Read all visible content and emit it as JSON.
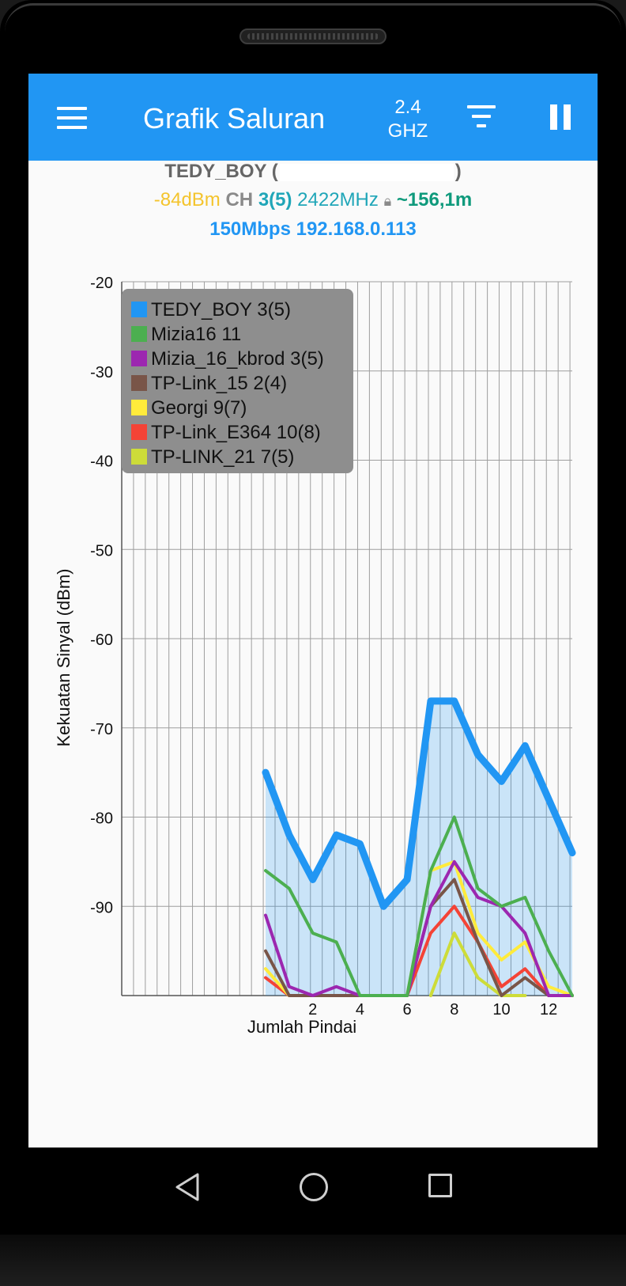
{
  "app_bar": {
    "title": "Grafik Saluran",
    "band_line1": "2.4",
    "band_line2": "GHZ",
    "menu_icon": "hamburger-menu-icon",
    "filter_icon": "filter-icon",
    "pause_icon": "pause-icon"
  },
  "connection": {
    "ssid": "TEDY_BOY",
    "ssid_open": "(",
    "ssid_close": ")",
    "signal": "-84dBm",
    "ch_label": "CH",
    "channel": "3(5)",
    "frequency": "2422MHz",
    "lock_icon": "lock-icon",
    "distance": "~156,1m",
    "speed": "150Mbps",
    "ip": "192.168.0.113"
  },
  "colors": {
    "accent": "#2196f3",
    "signal": "#f4c42c",
    "channel": "#20a6b8",
    "distance": "#0f9a7c"
  },
  "chart_data": {
    "type": "line",
    "xlabel": "Jumlah Pindai",
    "ylabel": "Kekuatan Sinyal (dBm)",
    "ylim": [
      -100,
      -20
    ],
    "y_ticks": [
      -20,
      -30,
      -40,
      -50,
      -60,
      -70,
      -80,
      -90
    ],
    "x_ticks": [
      2,
      4,
      6,
      8,
      10,
      12
    ],
    "grid": true,
    "legend_position": "top-left",
    "series": [
      {
        "name": "TEDY_BOY 3(5)",
        "color": "#2196f3",
        "fill": true,
        "x": [
          0,
          1,
          2,
          3,
          4,
          5,
          6,
          7,
          8,
          9,
          10,
          11,
          12,
          13
        ],
        "values": [
          -75,
          -82,
          -87,
          -82,
          -83,
          -90,
          -87,
          -67,
          -67,
          -73,
          -76,
          -72,
          -78,
          -84
        ]
      },
      {
        "name": "Mizia16 11",
        "color": "#4caf50",
        "x": [
          0,
          1,
          2,
          3,
          4,
          5,
          6,
          7,
          8,
          9,
          10,
          11,
          12,
          13
        ],
        "values": [
          -86,
          -88,
          -93,
          -94,
          -100,
          -100,
          -100,
          -86,
          -80,
          -88,
          -90,
          -89,
          -95,
          -100
        ]
      },
      {
        "name": "Mizia_16_kbrod 3(5)",
        "color": "#9c27b0",
        "x": [
          0,
          1,
          2,
          3,
          4,
          5,
          6,
          7,
          8,
          9,
          10,
          11,
          12,
          13
        ],
        "values": [
          -91,
          -99,
          -100,
          -99,
          -100,
          -100,
          -100,
          -90,
          -85,
          -89,
          -90,
          -93,
          -100,
          -100
        ]
      },
      {
        "name": "TP-Link_15 2(4)",
        "color": "#795548",
        "x": [
          0,
          1,
          2,
          3,
          4,
          5,
          6,
          7,
          8,
          9,
          10,
          11,
          12,
          13
        ],
        "values": [
          -95,
          -100,
          -100,
          -100,
          -100,
          -100,
          -100,
          -90,
          -87,
          -94,
          -100,
          -98,
          -100,
          -100
        ]
      },
      {
        "name": "Georgi 9(7)",
        "color": "#ffeb3b",
        "x": [
          0,
          1,
          2,
          3,
          4,
          5,
          6,
          7,
          8,
          9,
          10,
          11,
          12,
          13
        ],
        "values": [
          -97,
          -100,
          -100,
          -100,
          -100,
          -100,
          -100,
          -86,
          -85,
          -93,
          -96,
          -94,
          -99,
          -100
        ]
      },
      {
        "name": "TP-Link_E364 10(8)",
        "color": "#f44336",
        "x": [
          0,
          1,
          2,
          3,
          4,
          5,
          6,
          7,
          8,
          9,
          10,
          11,
          12,
          13
        ],
        "values": [
          -98,
          -100,
          -100,
          -100,
          -100,
          -100,
          -100,
          -93,
          -90,
          -94,
          -99,
          -97,
          -100,
          -100
        ]
      },
      {
        "name": "TP-LINK_21 7(5)",
        "color": "#cddc39",
        "x": [
          7,
          8,
          9,
          10,
          11
        ],
        "values": [
          -100,
          -93,
          -98,
          -100,
          -100
        ]
      }
    ]
  },
  "nav": {
    "back_icon": "back-triangle-icon",
    "home_icon": "home-circle-icon",
    "recent_icon": "recent-apps-square-icon"
  }
}
